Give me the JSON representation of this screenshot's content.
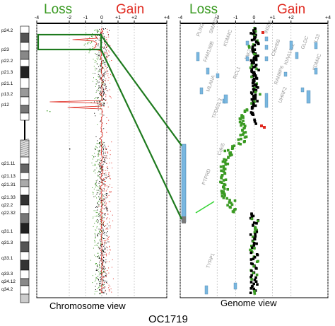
{
  "title": "OC1719",
  "left_panel": {
    "label": "Chromosome view",
    "loss_label": "Loss",
    "gain_label": "Gain",
    "ticks": [
      "-4",
      "-2",
      "-1",
      "0",
      "+1",
      "+2",
      "+4"
    ],
    "bands": [
      "p24.2",
      "p23",
      "p22.2",
      "p21.3",
      "p21.1",
      "p13.2",
      "p12",
      "q21.11",
      "q21.13",
      "q21.31",
      "q21.33",
      "q22.2",
      "q22.32",
      "q31.1",
      "q31.3",
      "q33.1",
      "q33.3",
      "q34.12",
      "q34.2"
    ]
  },
  "right_panel": {
    "label": "Genome view",
    "loss_label": "Loss",
    "gain_label": "Gain",
    "ticks": [
      "-4",
      "-2",
      "-1",
      "0",
      "+1",
      "+2",
      "+4"
    ],
    "genes": [
      "PLIN2",
      "SMAP2C",
      "FAM138B",
      "MLANA",
      "TPD52L3",
      "KDM4C",
      "Cdkl5",
      "PTPRD",
      "TYRP1",
      "INSL6",
      "C9orf68",
      "KIAA1432",
      "RANBP6",
      "UHRF2",
      "GLDC",
      "IL33",
      "KDM4C",
      "RCL1",
      "JAK2"
    ]
  },
  "colors": {
    "loss": "#3a9a22",
    "gain": "#e02a20",
    "neutral": "#000000",
    "zoom": "#1e7a1e",
    "segment": "#79b7e0"
  },
  "chart_data": [
    {
      "type": "scatter",
      "name": "Chromosome view",
      "xlabel": "",
      "ylabel": "",
      "xlim": [
        -4,
        4
      ],
      "x_ticks": [
        "-4",
        "-2",
        "-1",
        "0",
        "+1",
        "+2",
        "+4"
      ],
      "series": [
        {
          "name": "Loss",
          "color": "#3a9a22"
        },
        {
          "name": "Gain",
          "color": "#e02a20"
        }
      ]
    },
    {
      "type": "scatter",
      "name": "Genome view",
      "xlim": [
        -4,
        4
      ],
      "x_ticks": [
        "-4",
        "-2",
        "-1",
        "0",
        "+1",
        "+2",
        "+4"
      ]
    }
  ]
}
